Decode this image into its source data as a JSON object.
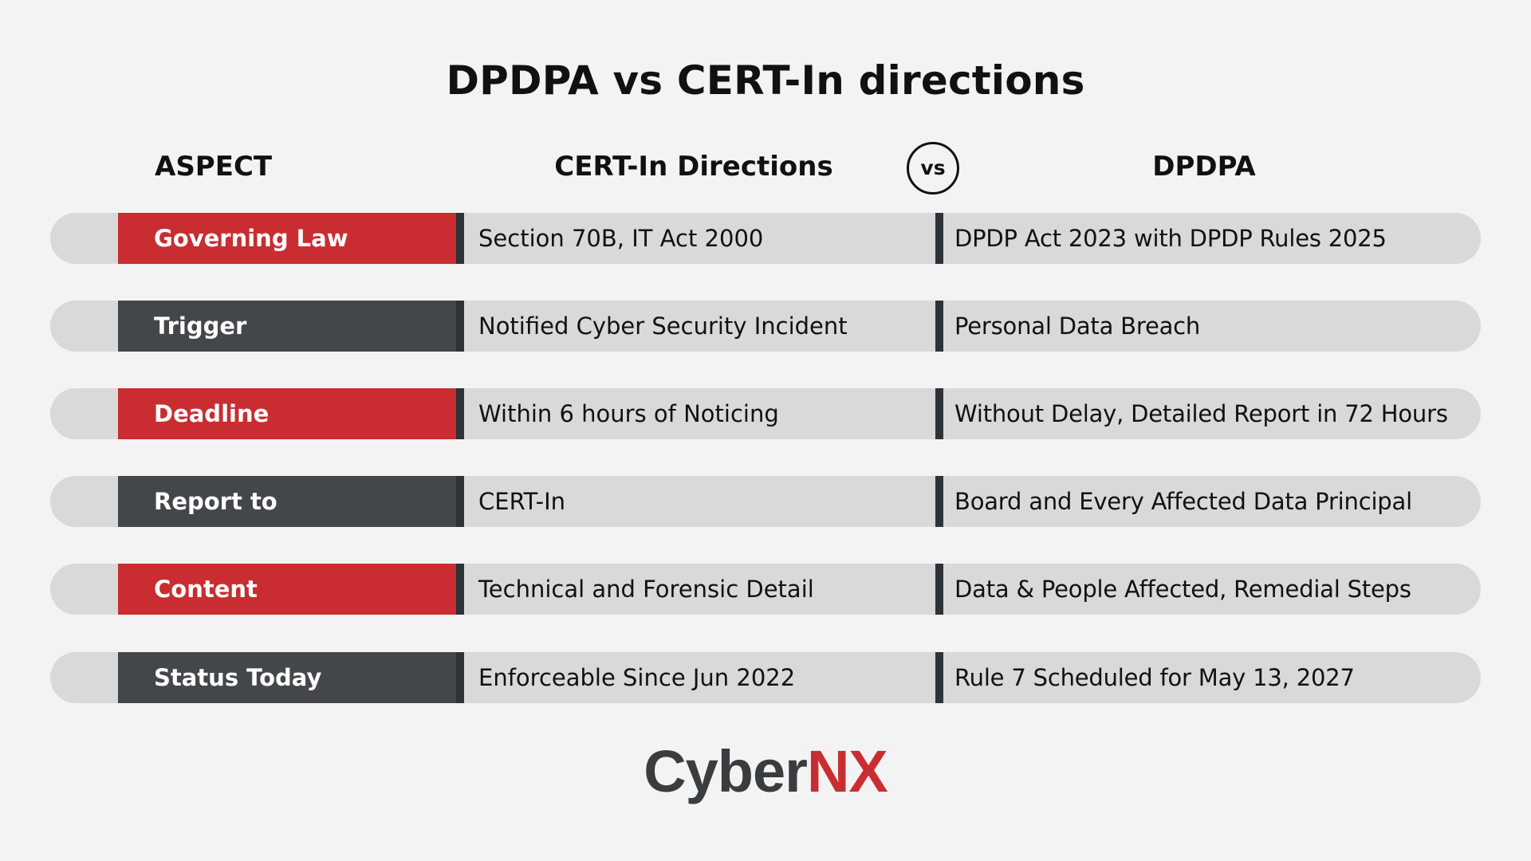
{
  "title": "DPDPA vs CERT-In directions",
  "headers": {
    "aspect": "ASPECT",
    "cert": "CERT-In Directions",
    "vs": "vs",
    "dpdpa": "DPDPA"
  },
  "rows": [
    {
      "aspect": "Governing Law",
      "cert": "Section 70B, IT Act 2000",
      "dpdpa": "DPDP Act 2023 with DPDP Rules 2025",
      "label_color": "#c92d31"
    },
    {
      "aspect": "Trigger",
      "cert": "Notified Cyber Security Incident",
      "dpdpa": "Personal Data Breach",
      "label_color": "#43474a"
    },
    {
      "aspect": "Deadline",
      "cert": "Within 6 hours of Noticing",
      "dpdpa": "Without Delay, Detailed Report in 72 Hours",
      "label_color": "#c92d31"
    },
    {
      "aspect": "Report to",
      "cert": "CERT-In",
      "dpdpa": "Board and Every Affected Data Principal",
      "label_color": "#43474a"
    },
    {
      "aspect": "Content",
      "cert": "Technical and Forensic Detail",
      "dpdpa": "Data & People Affected, Remedial Steps",
      "label_color": "#c92d31"
    },
    {
      "aspect": "Status Today",
      "cert": "Enforceable Since Jun 2022",
      "dpdpa": "Rule 7 Scheduled for May 13, 2027",
      "label_color": "#43474a"
    }
  ],
  "logo": {
    "part1": "Cyber",
    "part2": "NX",
    "part1_color": "#3a3d40",
    "part2_color": "#c92d31"
  }
}
